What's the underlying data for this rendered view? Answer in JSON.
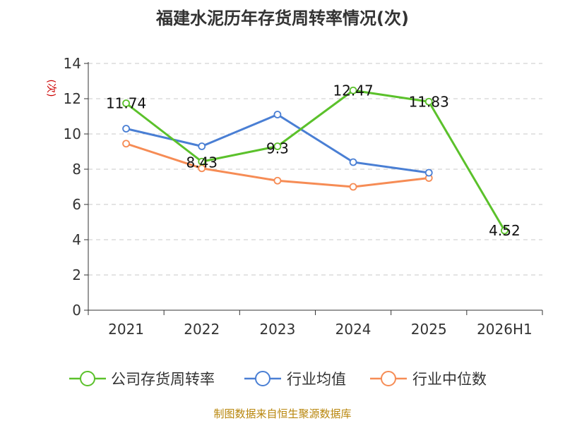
{
  "chart_data": {
    "type": "line",
    "title": "福建水泥历年存货周转率情况(次)",
    "ylabel": "(次)",
    "xlabel": "",
    "categories": [
      "2021",
      "2022",
      "2023",
      "2024",
      "2025",
      "2026H1"
    ],
    "ylim": [
      0,
      14
    ],
    "yticks": [
      0,
      2,
      4,
      6,
      8,
      10,
      12,
      14
    ],
    "grid": true,
    "legend_position": "bottom",
    "series": [
      {
        "name": "公司存货周转率",
        "color": "#5bc12b",
        "values": [
          11.74,
          8.43,
          9.3,
          12.47,
          11.83,
          4.52
        ],
        "labels": [
          "11.74",
          "8.43",
          "9.3",
          "12.47",
          "11.83",
          "4.52"
        ]
      },
      {
        "name": "行业均值",
        "color": "#4a7fd4",
        "values": [
          10.3,
          9.3,
          11.1,
          8.4,
          7.8,
          null
        ]
      },
      {
        "name": "行业中位数",
        "color": "#f68c55",
        "values": [
          9.45,
          8.05,
          7.35,
          7.0,
          7.5,
          null
        ]
      }
    ]
  },
  "source_text": "制图数据来自恒生聚源数据库"
}
